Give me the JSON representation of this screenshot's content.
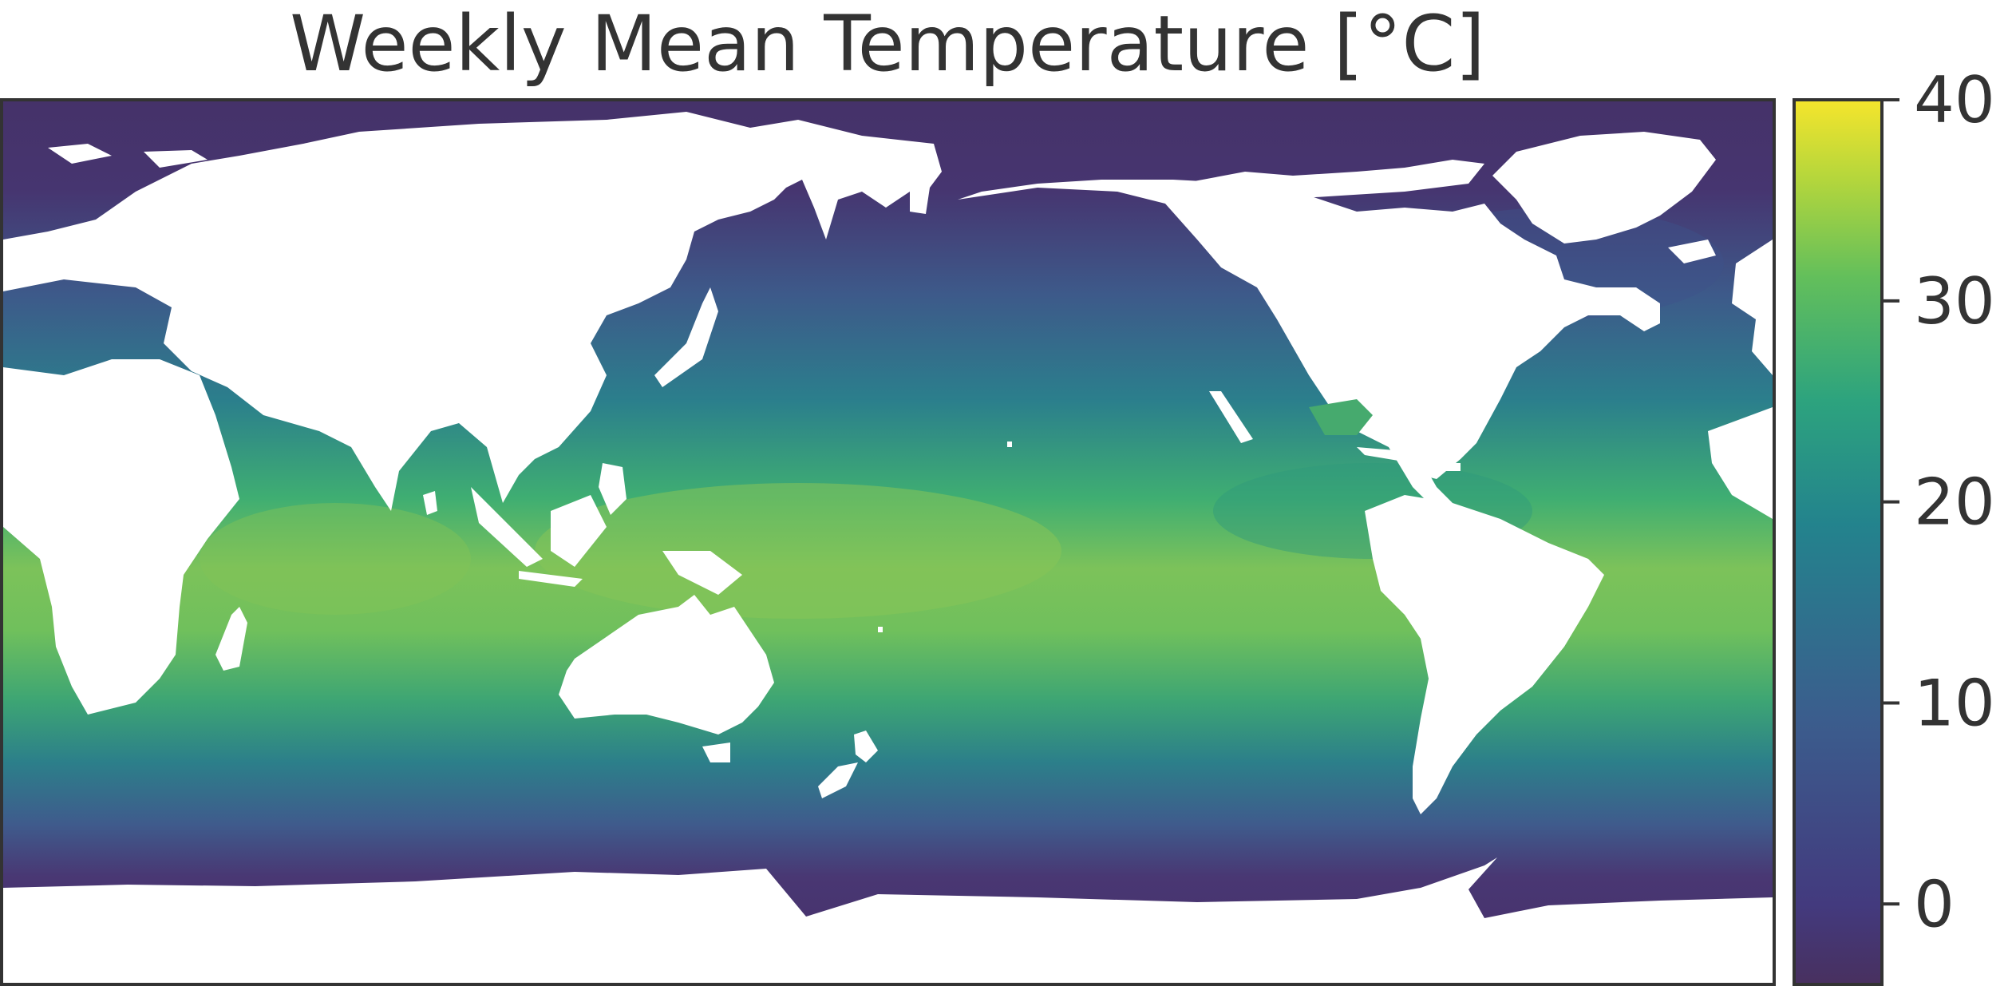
{
  "title": "Weekly Mean Temperature [°C]",
  "map": {
    "field": "sea surface temperature",
    "projection": "equirectangular (Plate Carrée), Pacific-centred",
    "land_color": "#ffffff",
    "frame_color": "#333333"
  },
  "colorbar": {
    "colormap": "viridis",
    "vmin": -4,
    "vmax": 40,
    "ticks": [
      0,
      10,
      20,
      30,
      40
    ],
    "tick_labels": [
      "0",
      "10",
      "20",
      "30",
      "40"
    ],
    "colors": [
      "#440154",
      "#414487",
      "#2a788e",
      "#22a884",
      "#7ad151",
      "#fde725"
    ]
  },
  "chart_data": {
    "type": "heatmap",
    "title": "Weekly Mean Temperature [°C]",
    "value_range": [
      -4,
      40
    ],
    "colorbar_ticks": [
      0,
      10,
      20,
      30,
      40
    ],
    "approx_zonal_mean_sst": [
      {
        "lat": 80,
        "value": -1
      },
      {
        "lat": 60,
        "value": 4
      },
      {
        "lat": 40,
        "value": 15
      },
      {
        "lat": 20,
        "value": 25
      },
      {
        "lat": 0,
        "value": 27
      },
      {
        "lat": -20,
        "value": 24
      },
      {
        "lat": -40,
        "value": 13
      },
      {
        "lat": -55,
        "value": 3
      },
      {
        "lat": -65,
        "value": -1
      }
    ]
  }
}
